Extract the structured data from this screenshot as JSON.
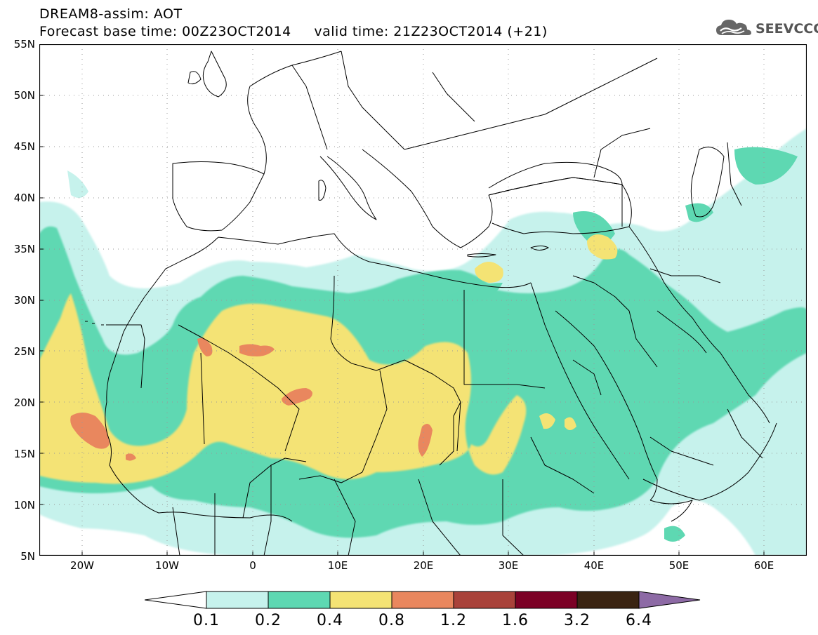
{
  "header": {
    "title_line1": "DREAM8-assim: AOT",
    "title_line2": "Forecast base time: 00Z23OCT2014     valid time: 21Z23OCT2014 (+21)"
  },
  "logo": {
    "text": "SEEVCCC",
    "icon": "cloud-icon"
  },
  "map": {
    "projection": "lat-lon",
    "extent": {
      "lon": [
        -25,
        65
      ],
      "lat": [
        5,
        55
      ]
    },
    "gridlines": "dotted",
    "lat_labels": [
      "55N",
      "50N",
      "45N",
      "40N",
      "35N",
      "30N",
      "25N",
      "20N",
      "15N",
      "10N",
      "5N"
    ],
    "lat_values": [
      55,
      50,
      45,
      40,
      35,
      30,
      25,
      20,
      15,
      10,
      5
    ],
    "lon_labels": [
      "20W",
      "10W",
      "0",
      "10E",
      "20E",
      "30E",
      "40E",
      "50E",
      "60E"
    ],
    "lon_values": [
      -20,
      -10,
      0,
      10,
      20,
      30,
      40,
      50,
      60
    ]
  },
  "colorbar": {
    "labels": [
      "0.1",
      "0.2",
      "0.4",
      "0.8",
      "1.2",
      "1.6",
      "3.2",
      "6.4"
    ],
    "colors": [
      "#c6f2ec",
      "#5ed8b2",
      "#f4e374",
      "#e9875e",
      "#a9423a",
      "#7b0025",
      "#3a2412",
      "#8d6aa5"
    ],
    "under_color": "#ffffff",
    "over_color": "#8d6aa5"
  },
  "colors": {
    "level1": "#c6f2ec",
    "level2": "#5ed8b2",
    "level3": "#f4e374",
    "level4": "#e9875e",
    "border": "#000000"
  }
}
